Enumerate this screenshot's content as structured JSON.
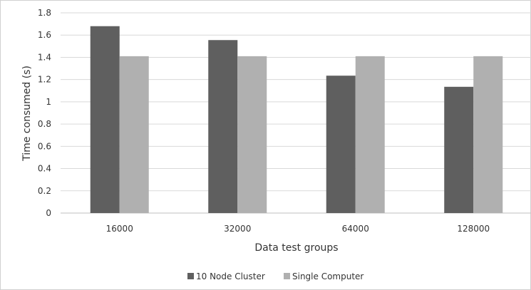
{
  "chart_data": {
    "type": "bar",
    "categories": [
      "16000",
      "32000",
      "64000",
      "128000"
    ],
    "series": [
      {
        "name": "10 Node Cluster",
        "values": [
          1.68,
          1.555,
          1.235,
          1.135
        ],
        "color": "#5f5f5f"
      },
      {
        "name": "Single Computer",
        "values": [
          1.41,
          1.41,
          1.41,
          1.41
        ],
        "color": "#b0b0b0"
      }
    ],
    "title": "",
    "xlabel": "Data test groups",
    "ylabel": "Time consumed (s)",
    "ylim": [
      0,
      1.8
    ],
    "yticks": [
      "0",
      "0.2",
      "0.4",
      "0.6",
      "0.8",
      "1",
      "1.2",
      "1.4",
      "1.6",
      "1.8"
    ],
    "grid": true,
    "legend_position": "bottom"
  }
}
